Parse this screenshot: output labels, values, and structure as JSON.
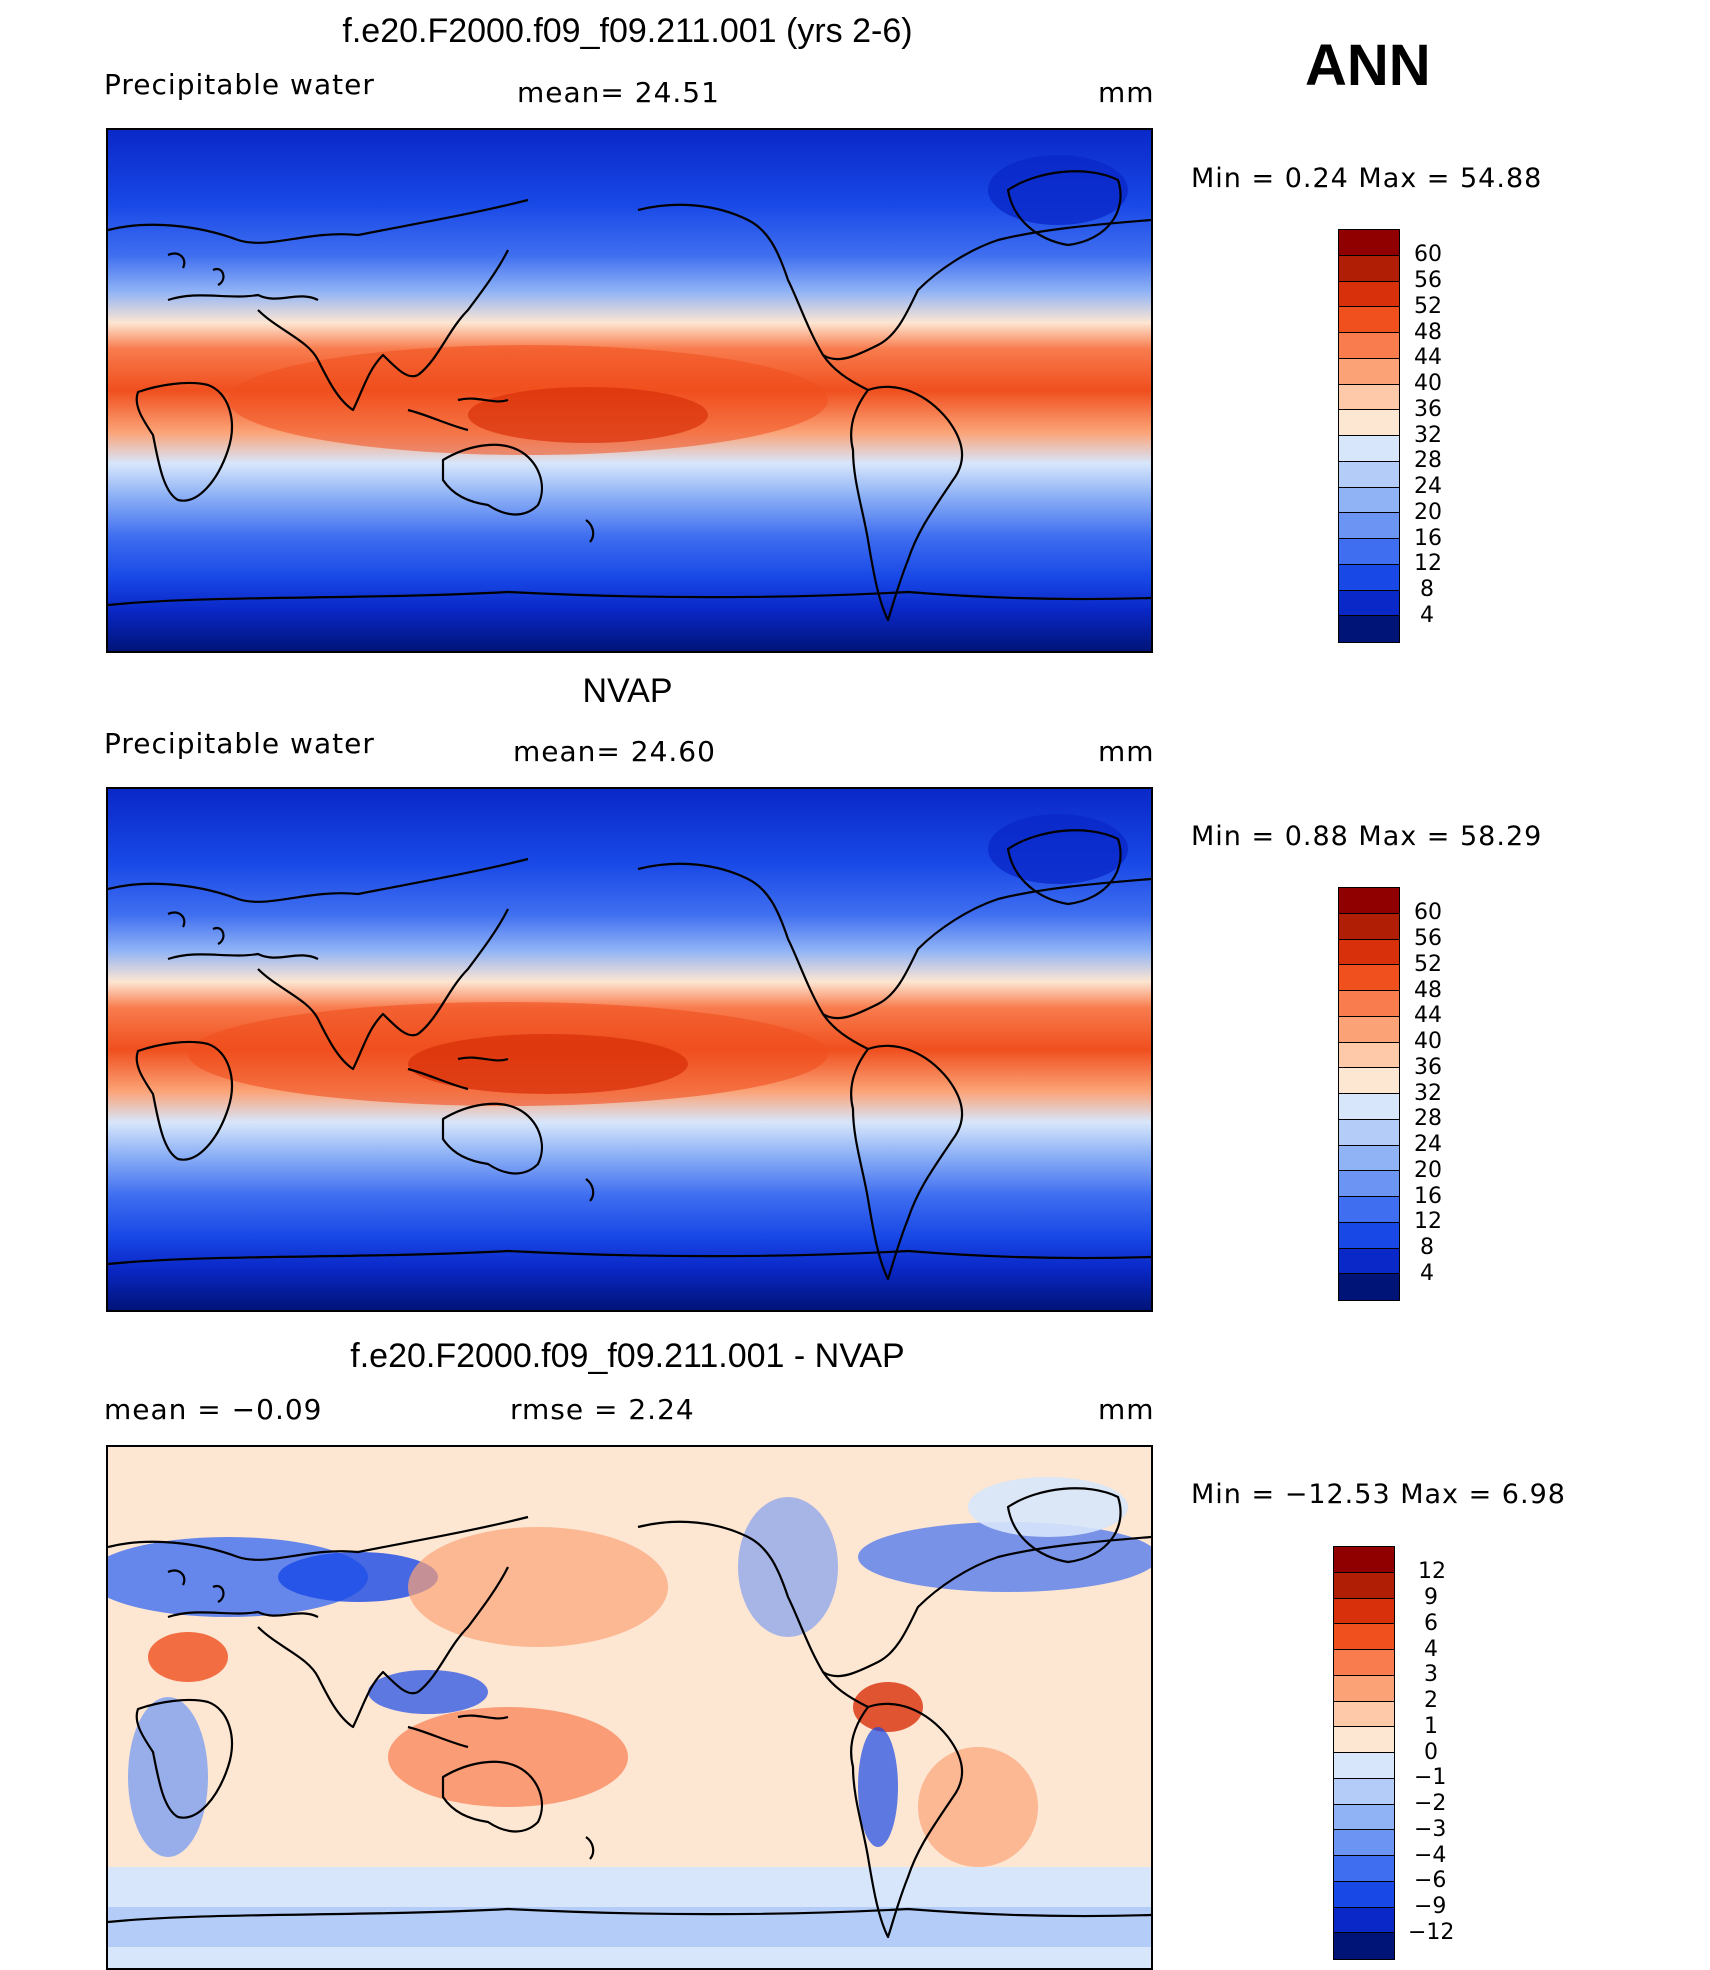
{
  "season": "ANN",
  "panels": [
    {
      "title": "f.e20.F2000.f09_f09.211.001 (yrs 2-6)",
      "left_label": "Precipitable  water",
      "mid_label": "mean=   24.51",
      "units": "mm",
      "minmax": "Min  =      0.24  Max  =    54.88",
      "levels": [
        "60",
        "56",
        "52",
        "48",
        "44",
        "40",
        "36",
        "32",
        "28",
        "24",
        "20",
        "16",
        "12",
        "8",
        "4"
      ],
      "colors": [
        "#900000",
        "#b01e05",
        "#d8300a",
        "#f04f1e",
        "#f87c4e",
        "#fba377",
        "#fdc9a8",
        "#fde6d2",
        "#d7e6fb",
        "#b4cdf8",
        "#90b3f6",
        "#6c95f3",
        "#3f6ef0",
        "#1848e6",
        "#0a28c8",
        "#001478"
      ]
    },
    {
      "title": "NVAP",
      "left_label": "Precipitable  water",
      "mid_label": "mean=   24.60",
      "units": "mm",
      "minmax": "Min  =      0.88  Max  =    58.29",
      "levels": [
        "60",
        "56",
        "52",
        "48",
        "44",
        "40",
        "36",
        "32",
        "28",
        "24",
        "20",
        "16",
        "12",
        "8",
        "4"
      ],
      "colors": [
        "#900000",
        "#b01e05",
        "#d8300a",
        "#f04f1e",
        "#f87c4e",
        "#fba377",
        "#fdc9a8",
        "#fde6d2",
        "#d7e6fb",
        "#b4cdf8",
        "#90b3f6",
        "#6c95f3",
        "#3f6ef0",
        "#1848e6",
        "#0a28c8",
        "#001478"
      ]
    },
    {
      "title": "f.e20.F2000.f09_f09.211.001 - NVAP",
      "left_label": "mean  =     −0.09",
      "mid_label": "rmse  =     2.24",
      "units": "mm",
      "minmax": "Min  = −12.53  Max  =      6.98",
      "levels": [
        "12",
        "9",
        "6",
        "4",
        "3",
        "2",
        "1",
        "0",
        "−1",
        "−2",
        "−3",
        "−4",
        "−6",
        "−9",
        "−12"
      ],
      "colors": [
        "#900000",
        "#b01e05",
        "#d8300a",
        "#f04f1e",
        "#f87c4e",
        "#fba377",
        "#fdc9a8",
        "#fde6d2",
        "#d7e6fb",
        "#b4cdf8",
        "#90b3f6",
        "#6c95f3",
        "#3f6ef0",
        "#1848e6",
        "#0a28c8",
        "#001478"
      ]
    }
  ]
}
